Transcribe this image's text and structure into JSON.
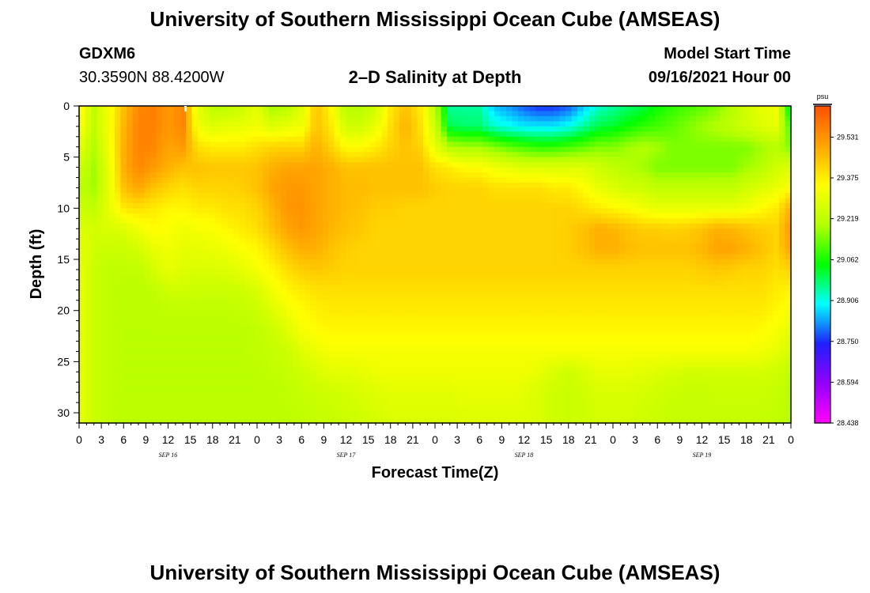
{
  "page": {
    "title_top": "University of Southern Mississippi Ocean Cube (AMSEAS)",
    "title_bottom": "University of Southern Mississippi Ocean Cube (AMSEAS)",
    "station_id": "GDXM6",
    "station_coords": "30.3590N  88.4200W",
    "plot_title": "2–D Salinity at Depth",
    "model_start_label": "Model Start Time",
    "model_start_value": "09/16/2021 Hour 00"
  },
  "chart_data": {
    "type": "heatmap",
    "title": "2–D Salinity at Depth",
    "xlabel": "Forecast Time(Z)",
    "ylabel": "Depth (ft)",
    "x_hours_range": [
      0,
      96
    ],
    "x_tick_labels": [
      "0",
      "3",
      "6",
      "9",
      "12",
      "15",
      "18",
      "21",
      "0",
      "3",
      "6",
      "9",
      "12",
      "15",
      "18",
      "21",
      "0",
      "3",
      "6",
      "9",
      "12",
      "15",
      "18",
      "21",
      "0",
      "3",
      "6",
      "9",
      "12",
      "15",
      "18",
      "21",
      "0"
    ],
    "day_labels": [
      {
        "label": "SEP 16",
        "hour": 12
      },
      {
        "label": "SEP 17",
        "hour": 36
      },
      {
        "label": "SEP 18",
        "hour": 60
      },
      {
        "label": "SEP 19",
        "hour": 84
      }
    ],
    "y_range": [
      0,
      31
    ],
    "y_ticks": [
      0,
      5,
      10,
      15,
      20,
      25,
      30
    ],
    "colorbar": {
      "unit": "psu",
      "min": 28.438,
      "max": 29.65,
      "tick_labels": [
        "29.531",
        "29.375",
        "29.219",
        "29.062",
        "28.906",
        "28.750",
        "28.594",
        "28.438"
      ],
      "colors": [
        "#ff00ff",
        "#9400ff",
        "#1f1fff",
        "#00ffff",
        "#00ff00",
        "#b4ff00",
        "#ffff00",
        "#ffa500",
        "#ff5000"
      ]
    },
    "z_grid": {
      "depths": [
        0,
        2,
        4,
        6,
        8,
        10,
        12,
        14,
        16,
        18,
        20,
        22,
        24,
        26,
        28,
        31
      ],
      "hours": [
        0,
        2,
        4,
        6,
        8,
        10,
        12,
        14,
        16,
        18,
        20,
        22,
        24,
        26,
        28,
        30,
        32,
        34,
        36,
        38,
        40,
        42,
        44,
        46,
        48,
        50,
        52,
        54,
        56,
        58,
        60,
        62,
        64,
        66,
        68,
        70,
        72,
        74,
        76,
        78,
        80,
        82,
        84,
        86,
        88,
        90,
        92,
        94,
        96
      ],
      "values": [
        [
          29.38,
          29.22,
          29.33,
          29.45,
          29.55,
          29.57,
          29.52,
          29.55,
          29.3,
          29.21,
          29.21,
          29.24,
          29.3,
          29.18,
          29.2,
          29.28,
          29.45,
          29.35,
          29.2,
          29.2,
          29.25,
          29.38,
          29.45,
          29.38,
          29.22,
          28.95,
          28.95,
          28.95,
          28.85,
          28.82,
          28.78,
          28.75,
          28.75,
          28.78,
          28.85,
          28.92,
          28.95,
          28.98,
          29.0,
          29.05,
          29.08,
          29.1,
          29.12,
          29.15,
          29.2,
          29.25,
          29.3,
          29.32,
          29.0
        ],
        [
          29.35,
          29.22,
          29.33,
          29.47,
          29.56,
          29.56,
          29.52,
          29.55,
          29.32,
          29.28,
          29.3,
          29.3,
          29.32,
          29.28,
          29.3,
          29.32,
          29.45,
          29.38,
          29.25,
          29.25,
          29.3,
          29.4,
          29.48,
          29.4,
          29.25,
          29.0,
          28.98,
          28.98,
          28.92,
          28.9,
          28.88,
          28.88,
          28.88,
          28.9,
          28.95,
          29.0,
          29.02,
          29.05,
          29.08,
          29.1,
          29.12,
          29.15,
          29.18,
          29.2,
          29.22,
          29.25,
          29.28,
          29.3,
          29.1
        ],
        [
          29.3,
          29.2,
          29.32,
          29.48,
          29.56,
          29.55,
          29.5,
          29.52,
          29.4,
          29.38,
          29.38,
          29.38,
          29.4,
          29.42,
          29.42,
          29.42,
          29.48,
          29.42,
          29.35,
          29.35,
          29.38,
          29.42,
          29.45,
          29.42,
          29.3,
          29.2,
          29.18,
          29.18,
          29.15,
          29.12,
          29.1,
          29.08,
          29.08,
          29.1,
          29.12,
          29.15,
          29.15,
          29.18,
          29.2,
          29.18,
          29.15,
          29.15,
          29.15,
          29.15,
          29.15,
          29.15,
          29.18,
          29.2,
          29.15
        ],
        [
          29.25,
          29.18,
          29.3,
          29.48,
          29.55,
          29.52,
          29.48,
          29.45,
          29.45,
          29.44,
          29.44,
          29.44,
          29.45,
          29.48,
          29.5,
          29.5,
          29.5,
          29.48,
          29.45,
          29.45,
          29.45,
          29.45,
          29.45,
          29.45,
          29.4,
          29.38,
          29.35,
          29.35,
          29.32,
          29.3,
          29.28,
          29.28,
          29.28,
          29.28,
          29.28,
          29.25,
          29.22,
          29.2,
          29.18,
          29.15,
          29.15,
          29.15,
          29.15,
          29.15,
          29.15,
          29.18,
          29.2,
          29.25,
          29.28
        ],
        [
          29.22,
          29.18,
          29.3,
          29.45,
          29.5,
          29.45,
          29.42,
          29.4,
          29.42,
          29.42,
          29.42,
          29.43,
          29.45,
          29.5,
          29.52,
          29.52,
          29.5,
          29.48,
          29.46,
          29.46,
          29.45,
          29.45,
          29.45,
          29.45,
          29.43,
          29.42,
          29.42,
          29.42,
          29.4,
          29.4,
          29.4,
          29.4,
          29.38,
          29.38,
          29.35,
          29.3,
          29.28,
          29.25,
          29.25,
          29.22,
          29.22,
          29.22,
          29.22,
          29.22,
          29.22,
          29.25,
          29.28,
          29.3,
          29.35
        ],
        [
          29.25,
          29.22,
          29.3,
          29.38,
          29.4,
          29.38,
          29.36,
          29.36,
          29.38,
          29.38,
          29.4,
          29.4,
          29.42,
          29.47,
          29.52,
          29.53,
          29.5,
          29.48,
          29.46,
          29.45,
          29.43,
          29.43,
          29.42,
          29.42,
          29.42,
          29.42,
          29.42,
          29.42,
          29.42,
          29.42,
          29.42,
          29.42,
          29.42,
          29.42,
          29.4,
          29.38,
          29.36,
          29.35,
          29.32,
          29.3,
          29.3,
          29.3,
          29.3,
          29.3,
          29.3,
          29.32,
          29.35,
          29.38,
          29.48
        ],
        [
          29.28,
          29.26,
          29.27,
          29.28,
          29.32,
          29.35,
          29.34,
          29.32,
          29.33,
          29.34,
          29.36,
          29.38,
          29.4,
          29.45,
          29.5,
          29.52,
          29.5,
          29.47,
          29.45,
          29.44,
          29.42,
          29.42,
          29.42,
          29.42,
          29.42,
          29.42,
          29.42,
          29.42,
          29.42,
          29.42,
          29.42,
          29.42,
          29.42,
          29.43,
          29.45,
          29.48,
          29.47,
          29.45,
          29.43,
          29.43,
          29.42,
          29.43,
          29.45,
          29.48,
          29.47,
          29.45,
          29.43,
          29.42,
          29.52
        ],
        [
          29.3,
          29.25,
          29.24,
          29.24,
          29.26,
          29.3,
          29.32,
          29.3,
          29.3,
          29.31,
          29.32,
          29.34,
          29.36,
          29.4,
          29.45,
          29.48,
          29.48,
          29.45,
          29.43,
          29.42,
          29.42,
          29.42,
          29.42,
          29.42,
          29.42,
          29.42,
          29.42,
          29.42,
          29.42,
          29.42,
          29.42,
          29.42,
          29.42,
          29.43,
          29.45,
          29.48,
          29.48,
          29.46,
          29.45,
          29.45,
          29.45,
          29.45,
          29.47,
          29.5,
          29.5,
          29.48,
          29.45,
          29.42,
          29.5
        ],
        [
          29.3,
          29.24,
          29.22,
          29.22,
          29.22,
          29.26,
          29.3,
          29.28,
          29.27,
          29.27,
          29.28,
          29.3,
          29.33,
          29.36,
          29.4,
          29.43,
          29.44,
          29.43,
          29.42,
          29.42,
          29.42,
          29.42,
          29.42,
          29.42,
          29.42,
          29.42,
          29.42,
          29.42,
          29.42,
          29.42,
          29.42,
          29.42,
          29.42,
          29.42,
          29.42,
          29.42,
          29.42,
          29.42,
          29.42,
          29.42,
          29.42,
          29.42,
          29.43,
          29.44,
          29.43,
          29.42,
          29.42,
          29.4,
          29.42
        ],
        [
          29.3,
          29.24,
          29.22,
          29.21,
          29.21,
          29.22,
          29.25,
          29.25,
          29.24,
          29.24,
          29.24,
          29.25,
          29.27,
          29.32,
          29.36,
          29.38,
          29.4,
          29.4,
          29.4,
          29.4,
          29.4,
          29.4,
          29.4,
          29.4,
          29.4,
          29.4,
          29.4,
          29.4,
          29.4,
          29.4,
          29.4,
          29.4,
          29.4,
          29.4,
          29.4,
          29.4,
          29.4,
          29.4,
          29.4,
          29.4,
          29.4,
          29.4,
          29.4,
          29.4,
          29.4,
          29.4,
          29.4,
          29.38,
          29.36
        ],
        [
          29.3,
          29.24,
          29.22,
          29.21,
          29.21,
          29.21,
          29.22,
          29.22,
          29.22,
          29.22,
          29.22,
          29.23,
          29.24,
          29.28,
          29.32,
          29.35,
          29.37,
          29.38,
          29.38,
          29.38,
          29.38,
          29.38,
          29.38,
          29.38,
          29.38,
          29.38,
          29.38,
          29.38,
          29.38,
          29.38,
          29.38,
          29.38,
          29.38,
          29.38,
          29.38,
          29.38,
          29.38,
          29.38,
          29.38,
          29.38,
          29.38,
          29.38,
          29.38,
          29.38,
          29.38,
          29.38,
          29.38,
          29.36,
          29.33
        ],
        [
          29.3,
          29.24,
          29.22,
          29.21,
          29.21,
          29.21,
          29.21,
          29.21,
          29.21,
          29.21,
          29.21,
          29.21,
          29.22,
          29.24,
          29.28,
          29.33,
          29.35,
          29.36,
          29.36,
          29.36,
          29.36,
          29.36,
          29.36,
          29.36,
          29.36,
          29.36,
          29.36,
          29.36,
          29.36,
          29.36,
          29.36,
          29.36,
          29.36,
          29.36,
          29.36,
          29.36,
          29.36,
          29.36,
          29.36,
          29.36,
          29.36,
          29.36,
          29.36,
          29.36,
          29.36,
          29.36,
          29.35,
          29.33,
          29.29
        ],
        [
          29.3,
          29.24,
          29.22,
          29.21,
          29.21,
          29.21,
          29.21,
          29.21,
          29.21,
          29.21,
          29.21,
          29.21,
          29.22,
          29.23,
          29.24,
          29.28,
          29.31,
          29.33,
          29.33,
          29.33,
          29.33,
          29.33,
          29.33,
          29.33,
          29.33,
          29.33,
          29.33,
          29.33,
          29.33,
          29.33,
          29.33,
          29.33,
          29.33,
          29.33,
          29.33,
          29.33,
          29.33,
          29.33,
          29.33,
          29.33,
          29.33,
          29.33,
          29.33,
          29.33,
          29.33,
          29.33,
          29.32,
          29.3,
          29.26
        ],
        [
          29.3,
          29.24,
          29.22,
          29.21,
          29.21,
          29.21,
          29.21,
          29.21,
          29.21,
          29.21,
          29.21,
          29.21,
          29.21,
          29.22,
          29.23,
          29.25,
          29.27,
          29.29,
          29.29,
          29.3,
          29.31,
          29.32,
          29.32,
          29.32,
          29.32,
          29.32,
          29.32,
          29.32,
          29.32,
          29.32,
          29.32,
          29.3,
          29.27,
          29.25,
          29.27,
          29.3,
          29.3,
          29.3,
          29.29,
          29.28,
          29.27,
          29.26,
          29.26,
          29.26,
          29.26,
          29.26,
          29.26,
          29.25,
          29.22
        ],
        [
          29.3,
          29.24,
          29.22,
          29.21,
          29.21,
          29.21,
          29.21,
          29.21,
          29.21,
          29.21,
          29.21,
          29.21,
          29.21,
          29.21,
          29.22,
          29.23,
          29.24,
          29.25,
          29.26,
          29.27,
          29.28,
          29.29,
          29.29,
          29.29,
          29.29,
          29.29,
          29.3,
          29.3,
          29.3,
          29.3,
          29.29,
          29.27,
          29.25,
          29.24,
          29.25,
          29.27,
          29.27,
          29.27,
          29.26,
          29.25,
          29.24,
          29.23,
          29.23,
          29.24,
          29.24,
          29.24,
          29.24,
          29.23,
          29.21
        ],
        [
          29.3,
          29.24,
          29.22,
          29.21,
          29.21,
          29.21,
          29.21,
          29.21,
          29.21,
          29.21,
          29.21,
          29.21,
          29.21,
          29.21,
          29.21,
          29.22,
          29.23,
          29.23,
          29.24,
          29.25,
          29.26,
          29.27,
          29.27,
          29.27,
          29.27,
          29.27,
          29.28,
          29.28,
          29.28,
          29.28,
          29.28,
          29.27,
          29.25,
          29.24,
          29.25,
          29.26,
          29.26,
          29.26,
          29.25,
          29.24,
          29.23,
          29.23,
          29.23,
          29.23,
          29.23,
          29.23,
          29.23,
          29.22,
          29.21
        ]
      ]
    }
  }
}
